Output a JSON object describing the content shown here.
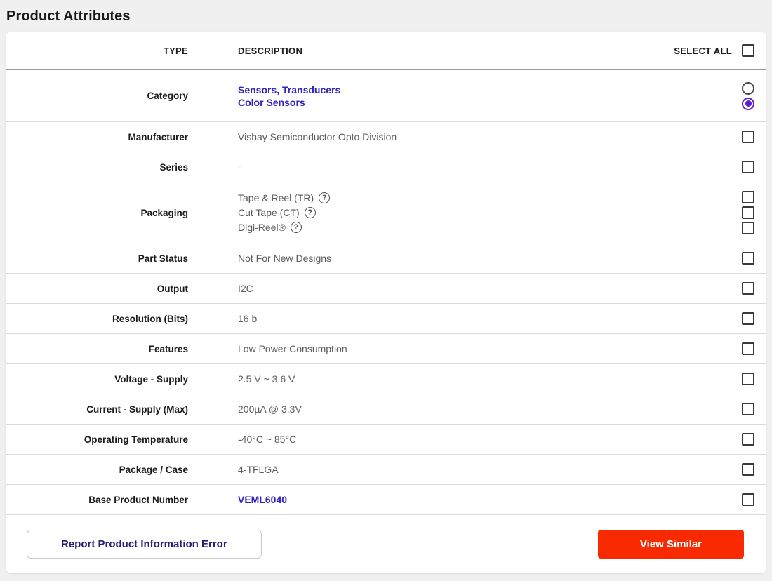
{
  "page_title": "Product Attributes",
  "colors": {
    "page_background": "#f0f0f0",
    "card_background": "#ffffff",
    "link": "#2d24bc",
    "radio_selected": "#5b1fd6",
    "view_similar_background": "#fa2a00",
    "report_button_text": "#241e78",
    "value_text": "#5c5c5c",
    "label_text": "#1c1c1c"
  },
  "table": {
    "headers": {
      "type": "TYPE",
      "description": "DESCRIPTION",
      "select_all": "SELECT ALL"
    },
    "rows": [
      {
        "label": "Category",
        "values": [
          "Sensors, Transducers",
          "Color Sensors"
        ],
        "control": "radio",
        "selected_value": "Color Sensors",
        "selected_index": 1
      },
      {
        "label": "Manufacturer",
        "value": "Vishay Semiconductor Opto Division",
        "control": "checkbox",
        "checked": false
      },
      {
        "label": "Series",
        "value": "-",
        "control": "checkbox",
        "checked": false
      },
      {
        "label": "Packaging",
        "values": [
          "Tape & Reel (TR)",
          "Cut Tape (CT)",
          "Digi-Reel®"
        ],
        "help_icon": "?",
        "control": "checkbox-group",
        "checked": [
          false,
          false,
          false
        ]
      },
      {
        "label": "Part Status",
        "value": "Not For New Designs",
        "control": "checkbox",
        "checked": false
      },
      {
        "label": "Output",
        "value": "I2C",
        "control": "checkbox",
        "checked": false
      },
      {
        "label": "Resolution (Bits)",
        "value": "16 b",
        "control": "checkbox",
        "checked": false
      },
      {
        "label": "Features",
        "value": "Low Power Consumption",
        "control": "checkbox",
        "checked": false
      },
      {
        "label": "Voltage - Supply",
        "value": "2.5 V ~ 3.6 V",
        "control": "checkbox",
        "checked": false
      },
      {
        "label": "Current - Supply (Max)",
        "value": "200µA @ 3.3V",
        "control": "checkbox",
        "checked": false
      },
      {
        "label": "Operating Temperature",
        "value": "-40°C ~ 85°C",
        "control": "checkbox",
        "checked": false
      },
      {
        "label": "Package / Case",
        "value": "4-TFLGA",
        "control": "checkbox",
        "checked": false
      },
      {
        "label": "Base Product Number",
        "value": "VEML6040",
        "is_link": true,
        "control": "checkbox",
        "checked": false
      }
    ]
  },
  "footer": {
    "report_button": "Report Product Information Error",
    "view_similar_button": "View Similar"
  }
}
